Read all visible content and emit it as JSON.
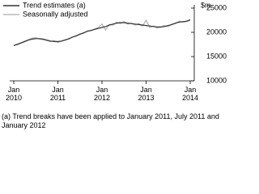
{
  "chart_data": {
    "type": "line",
    "y_label": "$m",
    "footnote": "(a) Trend breaks have been applied to January 2011, July 2011 and January 2012",
    "categories": [
      "Jan 2010",
      null,
      null,
      null,
      null,
      null,
      null,
      null,
      null,
      null,
      null,
      null,
      "Jan 2011",
      null,
      null,
      null,
      null,
      null,
      null,
      null,
      null,
      null,
      null,
      null,
      "Jan 2012",
      null,
      null,
      null,
      null,
      null,
      null,
      null,
      null,
      null,
      null,
      null,
      "Jan 2013",
      null,
      null,
      null,
      null,
      null,
      null,
      null,
      null,
      null,
      null,
      null,
      "Jan 2014"
    ],
    "series": [
      {
        "name": "Trend estimates (a)",
        "color": "#333333",
        "values": [
          17300,
          17500,
          17800,
          18100,
          18400,
          18600,
          18700,
          18700,
          18600,
          18400,
          18200,
          18100,
          18100,
          18200,
          18400,
          18700,
          19000,
          19300,
          19600,
          19900,
          20200,
          20400,
          20600,
          20800,
          21000,
          21200,
          21500,
          21700,
          21900,
          22000,
          22000,
          21900,
          21800,
          21700,
          21600,
          21500,
          21400,
          21300,
          21200,
          21100,
          21100,
          21200,
          21400,
          21600,
          21900,
          22100,
          22200,
          22300,
          22600
        ]
      },
      {
        "name": "Seasonally adjusted",
        "color": "#b8b8b8",
        "values": [
          17200,
          17600,
          17900,
          18200,
          18500,
          18800,
          18900,
          18600,
          18500,
          18300,
          18100,
          18300,
          17900,
          18200,
          18500,
          18600,
          19100,
          19200,
          19700,
          19800,
          20300,
          20300,
          20700,
          21000,
          21700,
          20500,
          21600,
          21500,
          22100,
          21800,
          22200,
          21700,
          21900,
          21500,
          21800,
          21300,
          22500,
          21000,
          21300,
          20900,
          21100,
          21400,
          21200,
          21700,
          21800,
          22300,
          22100,
          22200,
          22500
        ]
      }
    ],
    "ylim": [
      10000,
      25000
    ],
    "yticks": [
      10000,
      15000,
      20000,
      25000
    ]
  }
}
